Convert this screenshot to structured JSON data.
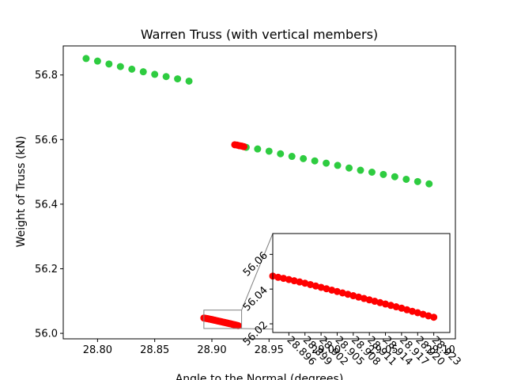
{
  "chart_data": {
    "type": "scatter",
    "title": "Warren Truss (with vertical members)",
    "xlabel": "Angle to the Normal (degrees)",
    "ylabel": "Weight of Truss (kN)",
    "xlim": [
      28.77,
      29.113
    ],
    "ylim": [
      55.983,
      56.89
    ],
    "xticks": [
      28.8,
      28.85,
      28.9,
      28.95,
      29.0,
      29.05,
      29.1
    ],
    "xtick_labels": [
      "28.80",
      "28.85",
      "28.90",
      "28.95",
      "29.00",
      "29.05",
      "29.10"
    ],
    "yticks": [
      56.0,
      56.2,
      56.4,
      56.6,
      56.8
    ],
    "ytick_labels": [
      "56.0",
      "56.2",
      "56.4",
      "56.6",
      "56.8"
    ],
    "grid": false,
    "series": [
      {
        "color": "#2ecc40",
        "points": [
          [
            28.79,
            56.851
          ],
          [
            28.8,
            56.843
          ],
          [
            28.81,
            56.834
          ],
          [
            28.82,
            56.826
          ],
          [
            28.83,
            56.818
          ],
          [
            28.84,
            56.81
          ],
          [
            28.85,
            56.802
          ],
          [
            28.86,
            56.795
          ],
          [
            28.87,
            56.788
          ],
          [
            28.88,
            56.781
          ],
          [
            28.93,
            56.576
          ],
          [
            28.94,
            56.571
          ],
          [
            28.95,
            56.564
          ],
          [
            28.96,
            56.556
          ],
          [
            28.97,
            56.548
          ],
          [
            28.98,
            56.541
          ],
          [
            28.99,
            56.534
          ],
          [
            29.0,
            56.527
          ],
          [
            29.01,
            56.52
          ],
          [
            29.02,
            56.512
          ],
          [
            29.03,
            56.505
          ],
          [
            29.04,
            56.499
          ],
          [
            29.05,
            56.492
          ],
          [
            29.06,
            56.485
          ],
          [
            29.07,
            56.477
          ],
          [
            29.08,
            56.47
          ],
          [
            29.09,
            56.463
          ]
        ]
      },
      {
        "color": "#ff0000",
        "points": [
          [
            28.92,
            56.584
          ],
          [
            28.922,
            56.583
          ],
          [
            28.924,
            56.581
          ],
          [
            28.926,
            56.58
          ],
          [
            28.928,
            56.578
          ]
        ]
      },
      {
        "color": "#ff0000",
        "points": [
          [
            28.893,
            56.0475
          ],
          [
            28.894,
            56.0468
          ],
          [
            28.895,
            56.0462
          ],
          [
            28.896,
            56.0455
          ],
          [
            28.897,
            56.0448
          ],
          [
            28.898,
            56.0441
          ],
          [
            28.899,
            56.0434
          ],
          [
            28.9,
            56.0426
          ],
          [
            28.901,
            56.0418
          ],
          [
            28.902,
            56.041
          ],
          [
            28.903,
            56.0402
          ],
          [
            28.904,
            56.0394
          ],
          [
            28.905,
            56.0386
          ],
          [
            28.906,
            56.0378
          ],
          [
            28.907,
            56.037
          ],
          [
            28.908,
            56.0362
          ],
          [
            28.909,
            56.0354
          ],
          [
            28.91,
            56.0346
          ],
          [
            28.911,
            56.0338
          ],
          [
            28.912,
            56.033
          ],
          [
            28.913,
            56.0322
          ],
          [
            28.914,
            56.0314
          ],
          [
            28.915,
            56.0306
          ],
          [
            28.916,
            56.0298
          ],
          [
            28.917,
            56.029
          ],
          [
            28.918,
            56.0281
          ],
          [
            28.919,
            56.0272
          ],
          [
            28.92,
            56.0264
          ],
          [
            28.921,
            56.0255
          ],
          [
            28.922,
            56.0246
          ],
          [
            28.923,
            56.0238
          ]
        ]
      }
    ],
    "inset": {
      "xlim": [
        28.893,
        28.926
      ],
      "ylim": [
        56.015,
        56.072
      ],
      "xticks": [
        28.896,
        28.899,
        28.902,
        28.905,
        28.908,
        28.911,
        28.914,
        28.917,
        28.92,
        28.923
      ],
      "xtick_labels": [
        "28.896",
        "28.899",
        "28.902",
        "28.905",
        "28.908",
        "28.911",
        "28.914",
        "28.917",
        "28.920",
        "28.923"
      ],
      "yticks": [
        56.02,
        56.04,
        56.06
      ],
      "ytick_labels": [
        "56.02",
        "56.04",
        "56.06"
      ],
      "zoom_xlim": [
        28.893,
        28.926
      ],
      "zoom_ylim": [
        56.015,
        56.072
      ],
      "series_index": 2
    }
  }
}
